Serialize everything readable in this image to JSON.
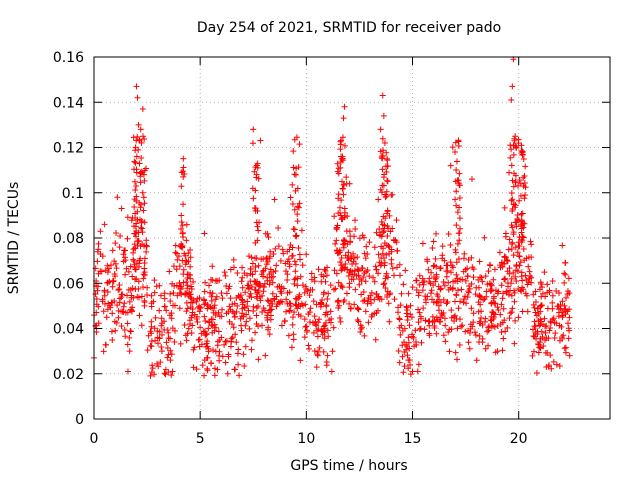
{
  "chart_data": {
    "type": "scatter",
    "title": "Day 254 of 2021, SRMTID for receiver pado",
    "xlabel": "GPS time / hours",
    "ylabel": "SRMTID / TECUs",
    "xlim": [
      0,
      24.3
    ],
    "ylim": [
      0,
      0.16
    ],
    "x_ticks": [
      0,
      5,
      10,
      15,
      20
    ],
    "x_tick_labels": [
      "0",
      "5",
      "10",
      "15",
      "20"
    ],
    "y_ticks": [
      0,
      0.02,
      0.04,
      0.06,
      0.08,
      0.1,
      0.12,
      0.14,
      0.16
    ],
    "y_tick_labels": [
      "0",
      "0.02",
      "0.04",
      "0.06",
      "0.08",
      "0.1",
      "0.12",
      "0.14",
      "0.16"
    ],
    "grid": true,
    "marker": "plus",
    "color": "#ff0000",
    "x_data_range": [
      0,
      22.4
    ],
    "series": [
      {
        "name": "SRMTID",
        "notes": "Dense scatter of roughly 2000+ samples; values listed are representative envelope points read from the plot.",
        "points": [
          [
            0.0,
            0.027
          ],
          [
            0.1,
            0.061
          ],
          [
            0.2,
            0.075
          ],
          [
            0.3,
            0.083
          ],
          [
            0.4,
            0.052
          ],
          [
            0.5,
            0.086
          ],
          [
            0.6,
            0.045
          ],
          [
            0.8,
            0.068
          ],
          [
            1.0,
            0.039
          ],
          [
            1.1,
            0.098
          ],
          [
            1.3,
            0.055
          ],
          [
            1.5,
            0.047
          ],
          [
            1.6,
            0.021
          ],
          [
            1.8,
            0.063
          ],
          [
            1.9,
            0.082
          ],
          [
            2.0,
            0.147
          ],
          [
            2.05,
            0.142
          ],
          [
            2.1,
            0.13
          ],
          [
            2.15,
            0.123
          ],
          [
            2.2,
            0.128
          ],
          [
            2.3,
            0.137
          ],
          [
            2.35,
            0.108
          ],
          [
            2.4,
            0.071
          ],
          [
            2.5,
            0.058
          ],
          [
            2.7,
            0.043
          ],
          [
            3.0,
            0.036
          ],
          [
            3.2,
            0.03
          ],
          [
            3.4,
            0.048
          ],
          [
            3.6,
            0.026
          ],
          [
            3.7,
            0.021
          ],
          [
            3.9,
            0.059
          ],
          [
            4.0,
            0.072
          ],
          [
            4.1,
            0.084
          ],
          [
            4.2,
            0.107
          ],
          [
            4.4,
            0.064
          ],
          [
            4.6,
            0.038
          ],
          [
            5.0,
            0.049
          ],
          [
            5.2,
            0.082
          ],
          [
            5.4,
            0.031
          ],
          [
            5.6,
            0.044
          ],
          [
            5.8,
            0.061
          ],
          [
            6.0,
            0.036
          ],
          [
            6.2,
            0.025
          ],
          [
            6.3,
            0.02
          ],
          [
            6.5,
            0.042
          ],
          [
            6.7,
            0.034
          ],
          [
            7.0,
            0.058
          ],
          [
            7.3,
            0.072
          ],
          [
            7.5,
            0.128
          ],
          [
            7.6,
            0.101
          ],
          [
            7.7,
            0.092
          ],
          [
            7.9,
            0.064
          ],
          [
            8.2,
            0.047
          ],
          [
            8.5,
            0.097
          ],
          [
            8.8,
            0.052
          ],
          [
            9.1,
            0.074
          ],
          [
            9.4,
            0.084
          ],
          [
            9.6,
            0.094
          ],
          [
            10.0,
            0.041
          ],
          [
            10.2,
            0.057
          ],
          [
            10.5,
            0.039
          ],
          [
            10.8,
            0.063
          ],
          [
            11.0,
            0.028
          ],
          [
            11.2,
            0.021
          ],
          [
            11.5,
            0.091
          ],
          [
            11.6,
            0.111
          ],
          [
            11.7,
            0.116
          ],
          [
            11.75,
            0.133
          ],
          [
            11.8,
            0.138
          ],
          [
            11.9,
            0.104
          ],
          [
            12.1,
            0.072
          ],
          [
            12.3,
            0.084
          ],
          [
            12.6,
            0.061
          ],
          [
            12.9,
            0.052
          ],
          [
            13.1,
            0.046
          ],
          [
            13.3,
            0.066
          ],
          [
            13.5,
            0.128
          ],
          [
            13.6,
            0.143
          ],
          [
            13.65,
            0.134
          ],
          [
            13.7,
            0.122
          ],
          [
            13.8,
            0.115
          ],
          [
            14.0,
            0.099
          ],
          [
            14.2,
            0.079
          ],
          [
            14.4,
            0.044
          ],
          [
            14.6,
            0.034
          ],
          [
            14.8,
            0.026
          ],
          [
            15.0,
            0.021
          ],
          [
            15.2,
            0.057
          ],
          [
            15.5,
            0.049
          ],
          [
            15.8,
            0.037
          ],
          [
            16.1,
            0.062
          ],
          [
            16.4,
            0.071
          ],
          [
            16.8,
            0.112
          ],
          [
            17.0,
            0.118
          ],
          [
            17.2,
            0.079
          ],
          [
            17.5,
            0.066
          ],
          [
            17.8,
            0.106
          ],
          [
            18.0,
            0.058
          ],
          [
            18.3,
            0.034
          ],
          [
            18.6,
            0.041
          ],
          [
            18.9,
            0.051
          ],
          [
            19.2,
            0.069
          ],
          [
            19.4,
            0.082
          ],
          [
            19.6,
            0.121
          ],
          [
            19.65,
            0.141
          ],
          [
            19.7,
            0.147
          ],
          [
            19.75,
            0.159
          ],
          [
            19.8,
            0.123
          ],
          [
            19.9,
            0.087
          ],
          [
            20.1,
            0.104
          ],
          [
            20.2,
            0.118
          ],
          [
            20.3,
            0.099
          ],
          [
            20.5,
            0.062
          ],
          [
            20.8,
            0.041
          ],
          [
            21.0,
            0.034
          ],
          [
            21.3,
            0.023
          ],
          [
            21.6,
            0.061
          ],
          [
            21.9,
            0.047
          ],
          [
            22.1,
            0.037
          ],
          [
            22.2,
            0.069
          ],
          [
            22.4,
            0.028
          ]
        ]
      }
    ]
  }
}
